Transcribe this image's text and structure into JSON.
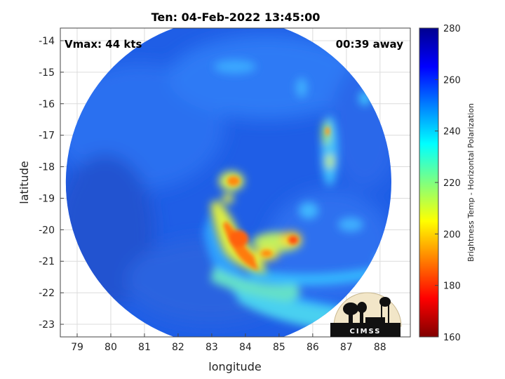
{
  "chart_data": {
    "type": "heatmap",
    "title": "Ten: 04-Feb-2022 13:45:00",
    "annotations": {
      "left": "Vmax: 44 kts",
      "right": "00:39 away"
    },
    "xlabel": "longitude",
    "ylabel": "latitude",
    "xlim": [
      78.5,
      88.9
    ],
    "ylim": [
      -23.4,
      -13.6
    ],
    "y_inverted": true,
    "x_ticks": [
      79,
      80,
      81,
      82,
      83,
      84,
      85,
      86,
      87,
      88
    ],
    "y_ticks": [
      -14,
      -15,
      -16,
      -17,
      -18,
      -19,
      -20,
      -21,
      -22,
      -23
    ],
    "grid": true,
    "colorbar": {
      "label": "Brightness Temp - Horizontal Polarization",
      "range": [
        160,
        280
      ],
      "ticks": [
        160,
        180,
        200,
        220,
        240,
        260,
        280
      ],
      "colormap": "jet",
      "placement": "right"
    },
    "swath": {
      "center": [
        83.5,
        -18.5
      ],
      "radius_deg": 5.2
    },
    "background_tb": 262,
    "features": [
      {
        "name": "central band core",
        "lon": 83.6,
        "lat": -20.4,
        "tb": 192
      },
      {
        "name": "band extension",
        "lon": 84.4,
        "lat": -20.9,
        "tb": 198
      },
      {
        "name": "upper cell",
        "lon": 83.6,
        "lat": -18.2,
        "tb": 205
      },
      {
        "name": "eastern cell",
        "lon": 85.4,
        "lat": -20.4,
        "tb": 200
      },
      {
        "name": "lower band",
        "lon": 84.8,
        "lat": -21.6,
        "tb": 232
      },
      {
        "name": "northeast band",
        "lon": 86.6,
        "lat": -17.2,
        "tb": 215
      },
      {
        "name": "southeast band",
        "lon": 85.8,
        "lat": -22.3,
        "tb": 240
      }
    ],
    "logo": "CIMSS"
  }
}
